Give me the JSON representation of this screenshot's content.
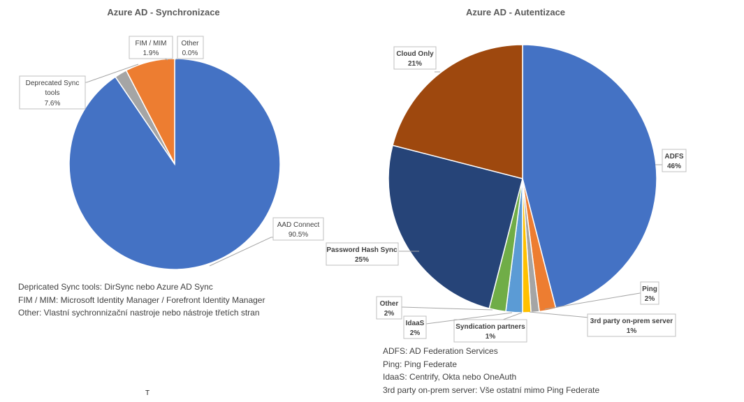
{
  "chart_data": [
    {
      "type": "pie",
      "title": "Azure AD - Synchronizace",
      "slices": [
        {
          "label": "AAD Connect",
          "value": 90.5,
          "display": "90.5%",
          "color": "#4472c4"
        },
        {
          "label": "Other",
          "value": 0.0,
          "display": "0.0%",
          "color": "#5b9bd5"
        },
        {
          "label": "FIM / MIM",
          "value": 1.9,
          "display": "1.9%",
          "color": "#a5a5a5"
        },
        {
          "label": "Deprecated Sync tools",
          "value": 7.6,
          "display": "7.6%",
          "color": "#ed7d31"
        }
      ]
    },
    {
      "type": "pie",
      "title": "Azure AD - Autentizace",
      "slices": [
        {
          "label": "ADFS",
          "value": 46,
          "display": "46%",
          "color": "#4472c4"
        },
        {
          "label": "Ping",
          "value": 2,
          "display": "2%",
          "color": "#ed7d31"
        },
        {
          "label": "3rd party on-prem server",
          "value": 1,
          "display": "1%",
          "color": "#a5a5a5"
        },
        {
          "label": "Syndication partners",
          "value": 1,
          "display": "1%",
          "color": "#ffc000"
        },
        {
          "label": "IdaaS",
          "value": 2,
          "display": "2%",
          "color": "#5b9bd5"
        },
        {
          "label": "Other",
          "value": 2,
          "display": "2%",
          "color": "#70ad47"
        },
        {
          "label": "Password Hash Sync",
          "value": 25,
          "display": "25%",
          "color": "#264478"
        },
        {
          "label": "Cloud Only",
          "value": 21,
          "display": "21%",
          "color": "#9e480e"
        }
      ]
    }
  ],
  "notes_left": [
    "Depricated Sync tools: DirSync nebo Azure AD Sync",
    "FIM / MIM: Microsoft Identity Manager / Forefront Identity Manager",
    "Other: Vlastní sychronnizační nastroje nebo nástroje třetích stran"
  ],
  "notes_right": [
    "ADFS: AD Federation Services",
    "Ping: Ping Federate",
    "IdaaS: Centrify, Okta nebo OneAuth",
    "3rd party on-prem server: Vše ostatní mimo Ping Federate"
  ],
  "cursor_glyph": "T"
}
